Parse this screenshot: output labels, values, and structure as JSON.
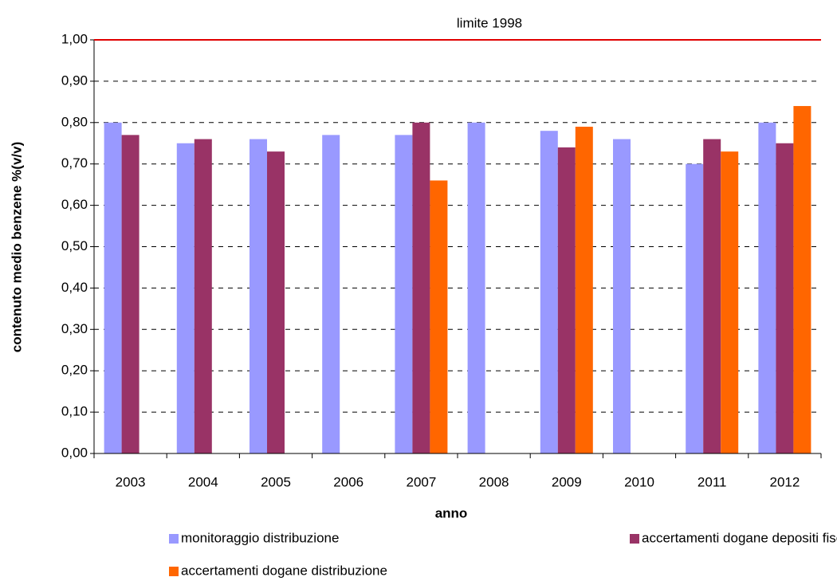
{
  "chart_data": {
    "type": "bar",
    "x_label": "anno",
    "y_label": "contenuto medio benzene %(v/v)",
    "categories": [
      "2003",
      "2004",
      "2005",
      "2006",
      "2007",
      "2008",
      "2009",
      "2010",
      "2011",
      "2012"
    ],
    "series": [
      {
        "name": "monitoraggio distribuzione",
        "color": "#9999ff",
        "values": [
          0.8,
          0.75,
          0.76,
          0.77,
          0.77,
          0.8,
          0.78,
          0.76,
          0.7,
          0.8
        ]
      },
      {
        "name": "accertamenti dogane depositi fiscali",
        "color": "#993366",
        "values": [
          0.77,
          0.76,
          0.73,
          null,
          0.8,
          null,
          0.74,
          null,
          0.76,
          0.75
        ]
      },
      {
        "name": "accertamenti dogane distribuzione",
        "color": "#ff6600",
        "values": [
          null,
          null,
          null,
          null,
          0.66,
          null,
          0.79,
          null,
          0.73,
          0.84
        ]
      }
    ],
    "ylim": [
      0,
      1
    ],
    "yticks": [
      {
        "value": 0,
        "label": "0,00"
      },
      {
        "value": 0.1,
        "label": "0,10"
      },
      {
        "value": 0.2,
        "label": "0,20"
      },
      {
        "value": 0.3,
        "label": "0,30"
      },
      {
        "value": 0.4,
        "label": "0,40"
      },
      {
        "value": 0.5,
        "label": "0,50"
      },
      {
        "value": 0.6,
        "label": "0,60"
      },
      {
        "value": 0.7,
        "label": "0,70"
      },
      {
        "value": 0.8,
        "label": "0,80"
      },
      {
        "value": 0.9,
        "label": "0,90"
      },
      {
        "value": 1,
        "label": "1,00"
      }
    ],
    "grid": true,
    "reference_line": {
      "text": "limite 1998",
      "value": 1,
      "color": "#e00000"
    },
    "legend": "bottom"
  }
}
